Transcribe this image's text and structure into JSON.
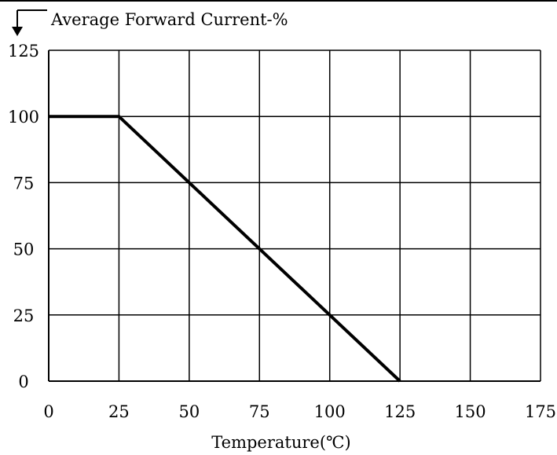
{
  "chart_data": {
    "type": "line",
    "title": "",
    "ylabel": "Average Forward Current-%",
    "xlabel": "Temperature(℃)",
    "x_ticks": [
      "0",
      "25",
      "50",
      "75",
      "100",
      "125",
      "150",
      "175"
    ],
    "y_ticks": [
      "0",
      "25",
      "50",
      "75",
      "100",
      "125"
    ],
    "xlim": [
      0,
      175
    ],
    "ylim": [
      0,
      125
    ],
    "grid": true,
    "series": [
      {
        "x": [
          0,
          25,
          125
        ],
        "y": [
          100,
          100,
          0
        ]
      }
    ],
    "line_color": "#000000"
  }
}
